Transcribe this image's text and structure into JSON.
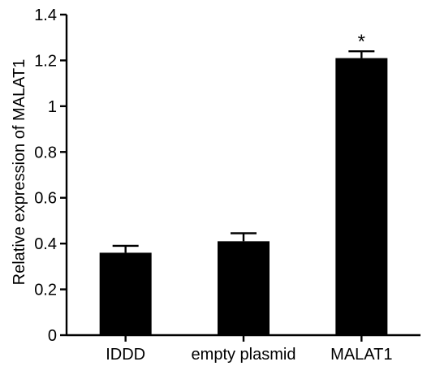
{
  "chart_data": {
    "type": "bar",
    "ylabel": "Relative expression of MALAT1",
    "xlabel": "",
    "categories": [
      "IDDD",
      "empty plasmid",
      "MALAT1"
    ],
    "values": [
      0.36,
      0.41,
      1.21
    ],
    "error": [
      0.03,
      0.035,
      0.03
    ],
    "annotations": [
      "",
      "",
      "*"
    ],
    "ylim": [
      0,
      1.4
    ],
    "yticks": [
      0,
      0.2,
      0.4,
      0.6,
      0.8,
      1,
      1.2,
      1.4
    ],
    "ytick_labels": [
      "0",
      "0.2",
      "0.4",
      "0.6",
      "0.8",
      "1",
      "1.2",
      "1.4"
    ],
    "bar_color": "#000000",
    "grid": false
  }
}
